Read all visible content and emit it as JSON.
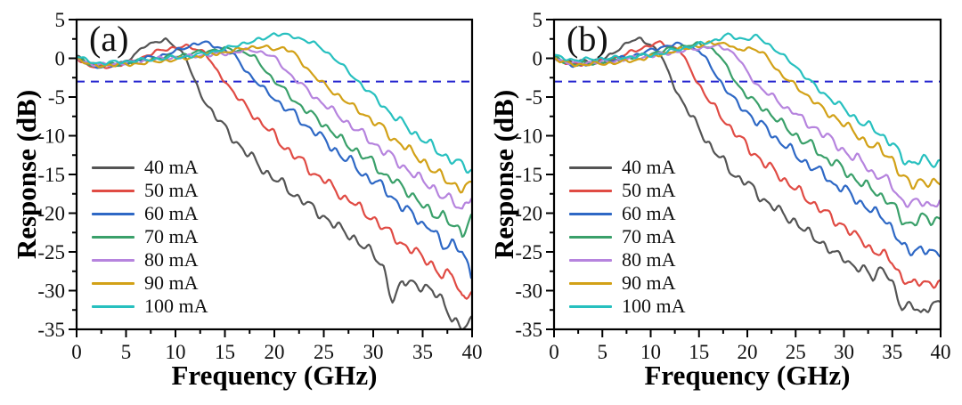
{
  "chart_data": [
    {
      "type": "line",
      "panel_label": "(a)",
      "xlabel": "Frequency (GHz)",
      "ylabel": "Response (dB)",
      "xlim": [
        0,
        40
      ],
      "ylim": [
        -35,
        5
      ],
      "xticks": [
        0,
        5,
        10,
        15,
        20,
        25,
        30,
        35,
        40
      ],
      "yticks": [
        5,
        0,
        -5,
        -10,
        -15,
        -20,
        -25,
        -30,
        -35
      ],
      "minor_tick_step": 2.5,
      "grid": "off",
      "legend_position": "lower-left-inside",
      "threshold_line": {
        "y": -3,
        "color": "#2424cf",
        "style": "dashed"
      },
      "x_unit": "GHz",
      "x_step": 1,
      "series": [
        {
          "name": "40 mA",
          "color": "#545454",
          "values": [
            0.2,
            -0.6,
            -0.9,
            -1.0,
            -0.8,
            -0.4,
            0.5,
            1.8,
            2.1,
            2.3,
            1.6,
            0.3,
            -3.3,
            -5.6,
            -7.4,
            -9.0,
            -10.6,
            -12.0,
            -13.2,
            -14.5,
            -15.6,
            -16.4,
            -17.6,
            -18.5,
            -19.5,
            -20.4,
            -21.5,
            -22.3,
            -23.1,
            -24.4,
            -25.2,
            -26.8,
            -31.8,
            -28.6,
            -28.8,
            -30.0,
            -29.8,
            -31.0,
            -34.2,
            -34.6,
            -33.6
          ]
        },
        {
          "name": "50 mA",
          "color": "#e04b44",
          "values": [
            0.1,
            -0.8,
            -1.2,
            -1.1,
            -0.9,
            -0.7,
            -0.2,
            0.3,
            0.8,
            1.2,
            1.4,
            1.5,
            1.3,
            0.8,
            -1.4,
            -2.9,
            -4.6,
            -6.1,
            -7.5,
            -8.7,
            -10.0,
            -11.4,
            -12.5,
            -13.6,
            -14.9,
            -15.6,
            -16.9,
            -17.9,
            -18.6,
            -19.9,
            -20.6,
            -21.9,
            -22.9,
            -24.0,
            -24.9,
            -25.6,
            -26.6,
            -28.4,
            -27.6,
            -30.9,
            -30.3
          ]
        },
        {
          "name": "60 mA",
          "color": "#2e68c5",
          "values": [
            0.1,
            -0.7,
            -1.1,
            -1.0,
            -0.8,
            -0.6,
            -0.3,
            0.0,
            0.2,
            0.5,
            0.9,
            1.4,
            1.9,
            2.0,
            1.6,
            1.1,
            0.3,
            -1.4,
            -2.8,
            -4.1,
            -5.1,
            -6.4,
            -7.1,
            -8.5,
            -9.4,
            -10.5,
            -11.6,
            -12.9,
            -13.6,
            -15.0,
            -15.9,
            -16.6,
            -18.0,
            -19.4,
            -20.1,
            -21.4,
            -22.1,
            -24.4,
            -23.6,
            -25.1,
            -28.6
          ]
        },
        {
          "name": "70 mA",
          "color": "#3aa06a",
          "values": [
            0.1,
            -0.6,
            -1.0,
            -0.9,
            -0.8,
            -0.6,
            -0.4,
            -0.2,
            0.0,
            0.1,
            0.3,
            0.5,
            0.7,
            0.9,
            1.1,
            1.2,
            1.1,
            0.8,
            0.1,
            -1.4,
            -2.9,
            -4.1,
            -5.4,
            -6.5,
            -7.5,
            -8.5,
            -9.6,
            -10.9,
            -11.6,
            -12.6,
            -13.6,
            -14.9,
            -15.6,
            -16.9,
            -17.6,
            -18.9,
            -20.4,
            -19.9,
            -21.6,
            -22.9,
            -19.9
          ]
        },
        {
          "name": "80 mA",
          "color": "#b684de",
          "values": [
            0.1,
            -0.5,
            -0.9,
            -0.8,
            -0.7,
            -0.6,
            -0.5,
            -0.3,
            -0.1,
            0.0,
            0.1,
            0.2,
            0.3,
            0.4,
            0.5,
            0.6,
            0.8,
            1.0,
            1.0,
            0.7,
            0.1,
            -1.3,
            -2.6,
            -3.7,
            -4.9,
            -5.9,
            -6.9,
            -7.9,
            -8.9,
            -9.9,
            -10.9,
            -11.9,
            -12.9,
            -13.9,
            -14.9,
            -15.9,
            -16.5,
            -17.9,
            -18.4,
            -19.4,
            -17.6
          ]
        },
        {
          "name": "90 mA",
          "color": "#d2a117",
          "values": [
            0.0,
            -0.6,
            -1.0,
            -0.9,
            -0.8,
            -0.8,
            -0.7,
            -0.6,
            -0.4,
            -0.3,
            -0.2,
            0.0,
            0.2,
            0.4,
            0.6,
            0.8,
            1.0,
            1.3,
            1.5,
            1.4,
            1.2,
            1.4,
            0.6,
            -0.9,
            -2.2,
            -3.4,
            -4.4,
            -5.2,
            -6.4,
            -7.1,
            -8.1,
            -9.1,
            -10.4,
            -11.1,
            -12.4,
            -13.1,
            -14.4,
            -15.4,
            -16.1,
            -16.9,
            -16.4
          ]
        },
        {
          "name": "100 mA",
          "color": "#27c0bf",
          "values": [
            0.3,
            -0.3,
            -0.6,
            -0.6,
            -0.5,
            -0.4,
            -0.3,
            -0.2,
            -0.1,
            0.0,
            0.1,
            0.2,
            0.4,
            0.6,
            0.9,
            1.2,
            1.6,
            2.0,
            2.2,
            2.6,
            3.2,
            3.0,
            2.8,
            2.4,
            1.9,
            1.1,
            0.1,
            -1.1,
            -2.4,
            -3.6,
            -4.9,
            -6.1,
            -7.4,
            -8.4,
            -9.5,
            -10.4,
            -11.5,
            -12.4,
            -13.1,
            -13.9,
            -14.5
          ]
        }
      ]
    },
    {
      "type": "line",
      "panel_label": "(b)",
      "xlabel": "Frequency (GHz)",
      "ylabel": "Response (dB)",
      "xlim": [
        0,
        40
      ],
      "ylim": [
        -35,
        5
      ],
      "xticks": [
        0,
        5,
        10,
        15,
        20,
        25,
        30,
        35,
        40
      ],
      "yticks": [
        5,
        0,
        -5,
        -10,
        -15,
        -20,
        -25,
        -30,
        -35
      ],
      "minor_tick_step": 2.5,
      "grid": "off",
      "legend_position": "lower-left-inside",
      "threshold_line": {
        "y": -3,
        "color": "#2424cf",
        "style": "dashed"
      },
      "x_unit": "GHz",
      "x_step": 1,
      "series": [
        {
          "name": "40 mA",
          "color": "#545454",
          "values": [
            0.2,
            -0.3,
            -0.5,
            -0.4,
            -0.3,
            0.0,
            0.4,
            1.6,
            2.3,
            2.4,
            1.8,
            0.6,
            -2.4,
            -5.0,
            -7.1,
            -9.1,
            -11.0,
            -12.6,
            -14.1,
            -15.4,
            -16.1,
            -17.5,
            -18.5,
            -19.5,
            -20.4,
            -21.1,
            -22.4,
            -23.1,
            -24.1,
            -25.4,
            -25.6,
            -26.9,
            -27.4,
            -28.1,
            -26.9,
            -29.4,
            -32.1,
            -31.6,
            -33.4,
            -31.6,
            -31.4
          ]
        },
        {
          "name": "50 mA",
          "color": "#e04b44",
          "values": [
            0.1,
            -0.5,
            -0.8,
            -0.7,
            -0.6,
            -0.4,
            -0.1,
            0.3,
            0.8,
            1.3,
            1.7,
            2.0,
            1.6,
            1.1,
            -1.2,
            -3.4,
            -5.4,
            -7.0,
            -8.6,
            -10.0,
            -11.4,
            -12.6,
            -13.9,
            -14.7,
            -15.9,
            -16.9,
            -17.9,
            -18.9,
            -19.9,
            -20.9,
            -21.6,
            -22.9,
            -23.5,
            -24.9,
            -25.4,
            -26.1,
            -28.4,
            -29.4,
            -28.6,
            -29.1,
            -29.4
          ]
        },
        {
          "name": "60 mA",
          "color": "#2e68c5",
          "values": [
            0.1,
            -0.5,
            -0.9,
            -0.8,
            -0.7,
            -0.5,
            -0.3,
            0.0,
            0.3,
            0.6,
            1.0,
            1.4,
            1.7,
            1.8,
            1.5,
            1.0,
            -0.6,
            -2.6,
            -4.4,
            -5.9,
            -6.9,
            -8.4,
            -8.9,
            -10.4,
            -11.4,
            -12.4,
            -13.4,
            -14.4,
            -14.9,
            -16.4,
            -16.9,
            -17.9,
            -18.9,
            -19.9,
            -20.4,
            -21.9,
            -24.4,
            -24.9,
            -24.4,
            -25.4,
            -24.9
          ]
        },
        {
          "name": "70 mA",
          "color": "#3aa06a",
          "values": [
            0.1,
            -0.4,
            -0.8,
            -0.7,
            -0.6,
            -0.5,
            -0.3,
            -0.1,
            0.1,
            0.3,
            0.6,
            0.9,
            1.2,
            1.5,
            1.7,
            1.8,
            1.5,
            0.6,
            -1.4,
            -3.4,
            -4.9,
            -5.9,
            -6.7,
            -7.9,
            -8.9,
            -9.9,
            -10.9,
            -11.5,
            -12.9,
            -13.5,
            -14.4,
            -15.4,
            -16.4,
            -16.9,
            -17.9,
            -18.9,
            -20.9,
            -21.4,
            -20.6,
            -20.9,
            -20.6
          ]
        },
        {
          "name": "80 mA",
          "color": "#b684de",
          "values": [
            0.1,
            -0.4,
            -0.7,
            -0.6,
            -0.5,
            -0.5,
            -0.4,
            -0.2,
            0.0,
            0.1,
            0.3,
            0.5,
            0.7,
            0.9,
            1.1,
            1.3,
            1.5,
            1.5,
            1.2,
            0.2,
            -1.9,
            -3.4,
            -4.4,
            -5.4,
            -6.4,
            -7.0,
            -8.4,
            -8.9,
            -9.9,
            -10.9,
            -11.9,
            -12.9,
            -13.4,
            -14.9,
            -15.4,
            -16.4,
            -18.4,
            -18.9,
            -18.4,
            -18.9,
            -18.6
          ]
        },
        {
          "name": "90 mA",
          "color": "#d2a117",
          "values": [
            0.0,
            -0.5,
            -0.8,
            -0.8,
            -0.7,
            -0.7,
            -0.6,
            -0.5,
            -0.3,
            -0.1,
            0.2,
            0.5,
            0.8,
            1.1,
            1.4,
            1.6,
            1.9,
            2.0,
            1.9,
            0.9,
            1.4,
            1.1,
            0.2,
            -1.4,
            -2.6,
            -3.6,
            -4.6,
            -5.6,
            -6.9,
            -7.5,
            -8.5,
            -9.5,
            -10.5,
            -11.4,
            -12.0,
            -12.9,
            -15.4,
            -16.4,
            -15.6,
            -16.4,
            -16.1
          ]
        },
        {
          "name": "100 mA",
          "color": "#27c0bf",
          "values": [
            0.3,
            0.0,
            -0.2,
            -0.2,
            -0.1,
            0.0,
            0.0,
            0.1,
            0.2,
            0.3,
            0.4,
            0.6,
            0.9,
            1.2,
            1.5,
            1.8,
            2.1,
            2.5,
            3.0,
            2.6,
            2.5,
            2.8,
            2.0,
            1.0,
            0.0,
            -1.0,
            -2.4,
            -3.6,
            -4.6,
            -5.6,
            -6.5,
            -7.5,
            -8.5,
            -9.0,
            -10.0,
            -11.0,
            -13.0,
            -13.5,
            -13.0,
            -13.6,
            -13.4
          ]
        }
      ]
    }
  ]
}
